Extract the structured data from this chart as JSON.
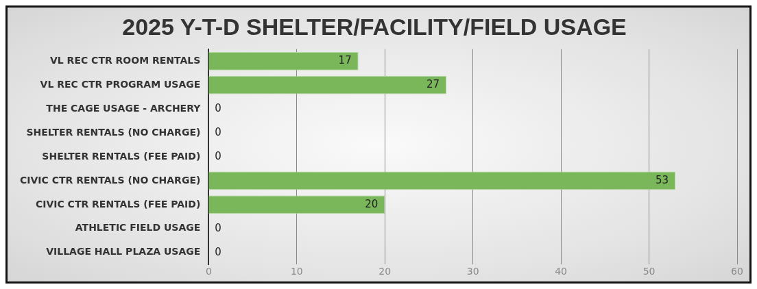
{
  "chart_data": {
    "type": "bar",
    "orientation": "horizontal",
    "title": "2025 Y-T-D SHELTER/FACILITY/FIELD USAGE",
    "categories": [
      "VL REC CTR ROOM RENTALS",
      "VL REC CTR PROGRAM USAGE",
      "THE CAGE USAGE - ARCHERY",
      "SHELTER RENTALS (NO CHARGE)",
      "SHELTER RENTALS (FEE PAID)",
      "CIVIC CTR RENTALS (NO CHARGE)",
      "CIVIC CTR RENTALS (FEE PAID)",
      "ATHLETIC FIELD USAGE",
      "VILLAGE HALL PLAZA USAGE"
    ],
    "values": [
      17,
      27,
      0,
      0,
      0,
      53,
      20,
      0,
      0
    ],
    "color": "#7ab65a",
    "xlim": [
      0,
      60
    ],
    "xticks": [
      0,
      10,
      20,
      30,
      40,
      50,
      60
    ],
    "grid": "x",
    "data_labels": true,
    "legend": false
  }
}
